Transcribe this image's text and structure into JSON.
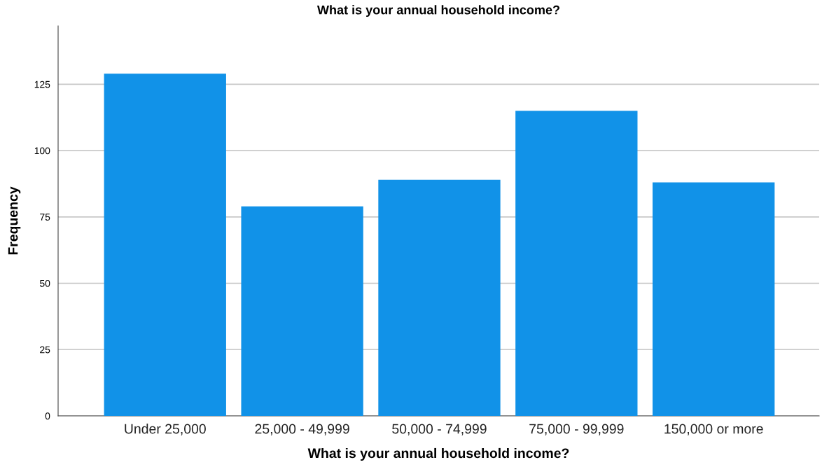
{
  "chart_data": {
    "type": "bar",
    "title": "What is your annual household income?",
    "xlabel": "What is your annual household income?",
    "ylabel": "Frequency",
    "categories": [
      "Under 25,000",
      "25,000 - 49,999",
      "50,000 - 74,999",
      "75,000 - 99,999",
      "150,000 or more"
    ],
    "values": [
      129,
      79,
      89,
      115,
      88
    ],
    "color": "#1192e8",
    "ylim": [
      0,
      147
    ],
    "yticks": [
      0,
      25,
      50,
      75,
      100,
      125
    ],
    "grid": "y",
    "legend": false
  }
}
